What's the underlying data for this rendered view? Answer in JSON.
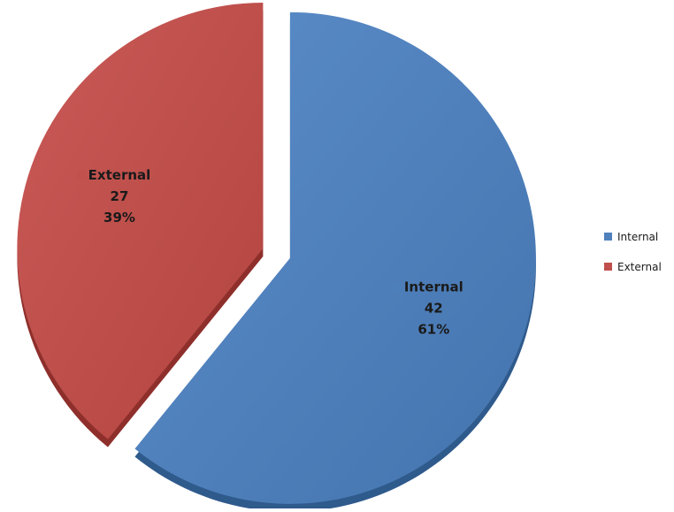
{
  "chart_data": {
    "type": "pie",
    "title": "",
    "categories": [
      "Internal",
      "External"
    ],
    "values": [
      42,
      27
    ],
    "percentages": [
      "61%",
      "39%"
    ],
    "colors": [
      "#4F81BD",
      "#C0504D"
    ],
    "exploded": true,
    "legend": {
      "position": "right",
      "items": [
        "Internal",
        "External"
      ]
    },
    "data_labels": [
      {
        "category": "Internal",
        "value": "42",
        "percent": "61%"
      },
      {
        "category": "External",
        "value": "27",
        "percent": "39%"
      }
    ]
  }
}
